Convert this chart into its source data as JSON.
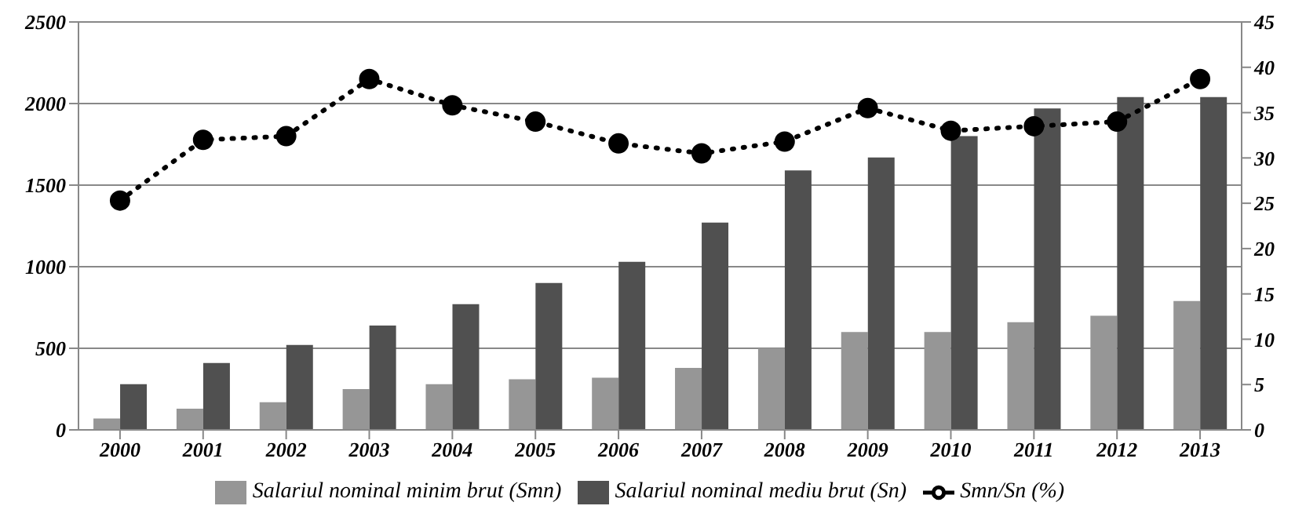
{
  "chart_data": {
    "type": "bar",
    "categories": [
      "2000",
      "2001",
      "2002",
      "2003",
      "2004",
      "2005",
      "2006",
      "2007",
      "2008",
      "2009",
      "2010",
      "2011",
      "2012",
      "2013"
    ],
    "series": [
      {
        "name": "Salariul nominal minim brut (Smn)",
        "color": "#969696",
        "values": [
          70,
          130,
          170,
          250,
          280,
          310,
          320,
          380,
          500,
          600,
          600,
          660,
          700,
          790
        ]
      },
      {
        "name": "Salariul nominal mediu brut (Sn)",
        "color": "#505050",
        "values": [
          280,
          410,
          520,
          640,
          770,
          900,
          1030,
          1270,
          1590,
          1670,
          1800,
          1970,
          2040,
          2040
        ]
      },
      {
        "name": "Smn/Sn (%)",
        "type": "line",
        "axis": "y2",
        "color": "#000000",
        "marker": "circle",
        "line_style": "dotted",
        "values": [
          25.3,
          32.0,
          32.4,
          38.7,
          35.8,
          34.0,
          31.6,
          30.5,
          31.8,
          35.5,
          33.0,
          33.5,
          34.0,
          38.7
        ]
      }
    ],
    "ylim": [
      0,
      2500
    ],
    "yticks": [
      0,
      500,
      1000,
      1500,
      2000,
      2500
    ],
    "y2lim": [
      0,
      45
    ],
    "y2ticks": [
      0,
      5,
      10,
      15,
      20,
      25,
      30,
      35,
      40,
      45
    ],
    "grid": "y",
    "legend": "bottom"
  }
}
